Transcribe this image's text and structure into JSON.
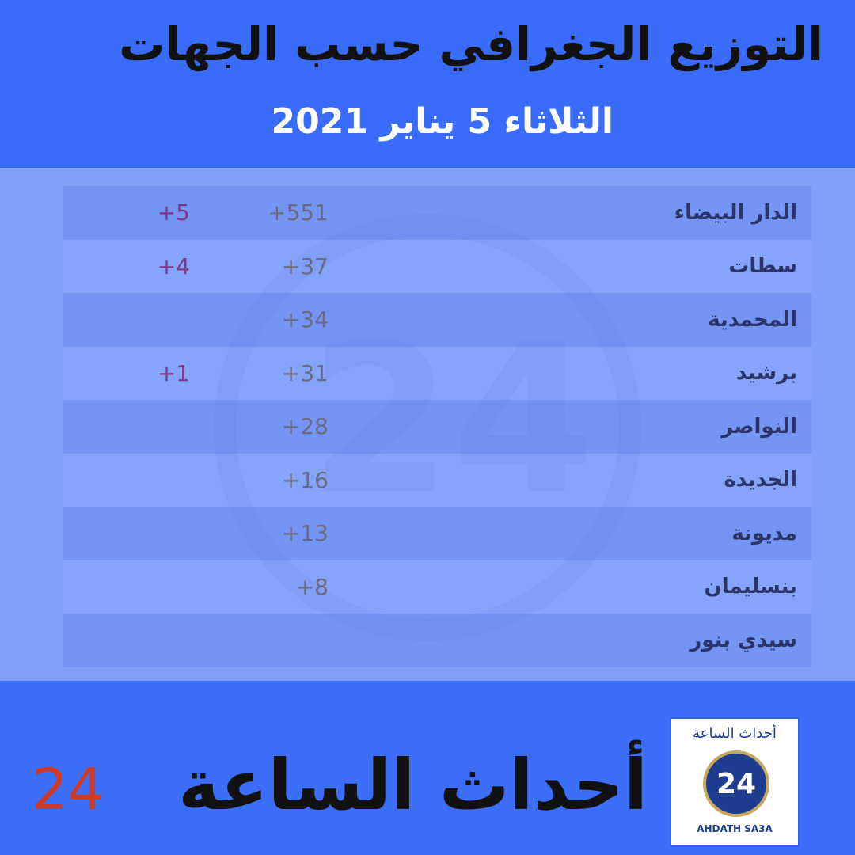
{
  "header": {
    "title": "التوزيع الجغرافي حسب الجهات",
    "date": "الثلاثاء 5 يناير 2021"
  },
  "table": {
    "rows": [
      {
        "name": "الدار البيضاء",
        "cases": "+551",
        "deaths": "+5"
      },
      {
        "name": "سطات",
        "cases": "+37",
        "deaths": "+4"
      },
      {
        "name": "المحمدية",
        "cases": "+34",
        "deaths": ""
      },
      {
        "name": "برشيد",
        "cases": "+31",
        "deaths": "+1"
      },
      {
        "name": "النواصر",
        "cases": "+28",
        "deaths": ""
      },
      {
        "name": "الجديدة",
        "cases": "+16",
        "deaths": ""
      },
      {
        "name": "مديونة",
        "cases": "+13",
        "deaths": ""
      },
      {
        "name": "بنسليمان",
        "cases": "+8",
        "deaths": ""
      },
      {
        "name": "سيدي بنور",
        "cases": "",
        "deaths": ""
      }
    ]
  },
  "footer": {
    "brand": "أحداث الساعة",
    "brand_number": "24",
    "logo_arabic": "أحداث الساعة",
    "logo_number": "24",
    "logo_latin": "AHDATH SA3A"
  },
  "colors": {
    "background": "#3d6ef8",
    "brand_number": "#d13a22",
    "deaths": "#7a3a86"
  }
}
